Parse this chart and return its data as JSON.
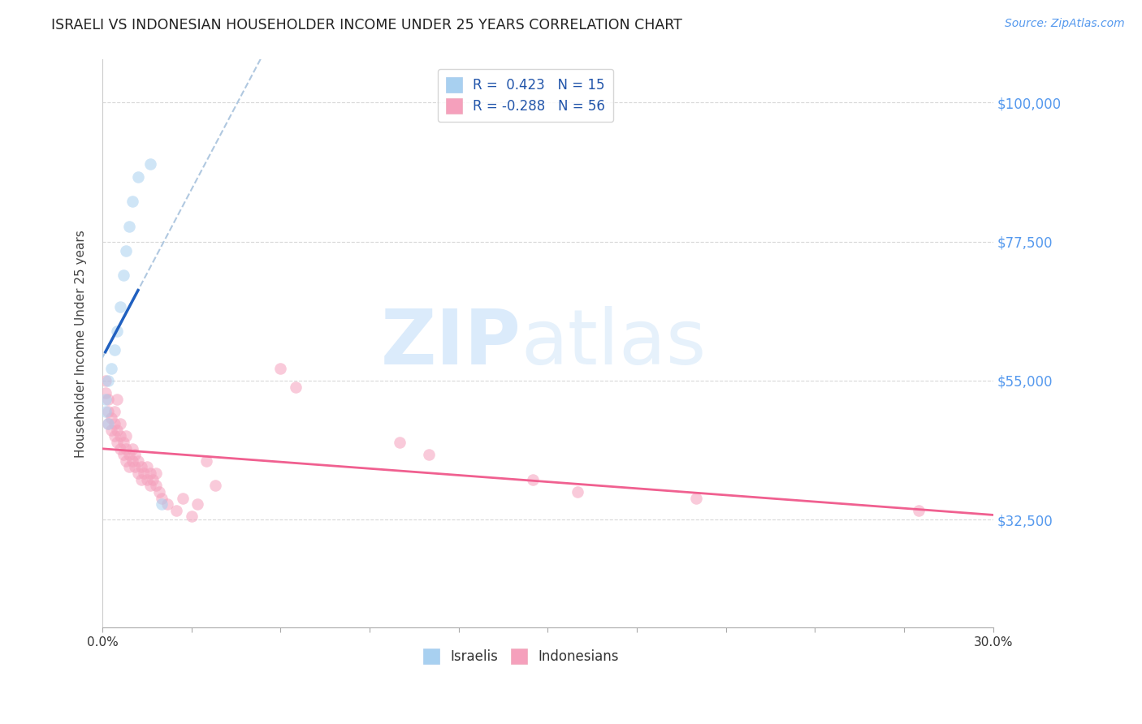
{
  "title": "ISRAELI VS INDONESIAN HOUSEHOLDER INCOME UNDER 25 YEARS CORRELATION CHART",
  "source": "Source: ZipAtlas.com",
  "ylabel": "Householder Income Under 25 years",
  "xlim": [
    0.0,
    0.3
  ],
  "ylim": [
    15000,
    107000
  ],
  "yticks": [
    32500,
    55000,
    77500,
    100000
  ],
  "ytick_labels": [
    "$32,500",
    "$55,000",
    "$77,500",
    "$100,000"
  ],
  "xticks": [
    0.0,
    0.03,
    0.06,
    0.09,
    0.12,
    0.15,
    0.18,
    0.21,
    0.24,
    0.27,
    0.3
  ],
  "xtick_labels_show": [
    "0.0%",
    "",
    "",
    "",
    "",
    "",
    "",
    "",
    "",
    "",
    "30.0%"
  ],
  "watermark_zip": "ZIP",
  "watermark_atlas": "atlas",
  "legend_R1": "R =  0.423   N = 15",
  "legend_R2": "R = -0.288   N = 56",
  "color_israeli": "#a8d0f0",
  "color_indonesian": "#f5a0bc",
  "color_line_israeli": "#2060c0",
  "color_line_indonesian": "#f06090",
  "color_dashed": "#b0c8e0",
  "bg_color": "#ffffff",
  "grid_color": "#d8d8d8",
  "title_color": "#222222",
  "axis_label_color": "#444444",
  "right_tick_color": "#5599ee",
  "source_color": "#5599ee",
  "israelis_x": [
    0.001,
    0.001,
    0.002,
    0.002,
    0.003,
    0.004,
    0.005,
    0.006,
    0.007,
    0.008,
    0.009,
    0.01,
    0.012,
    0.016,
    0.02
  ],
  "israelis_y": [
    50000,
    52000,
    48000,
    55000,
    57000,
    60000,
    63000,
    67000,
    72000,
    76000,
    80000,
    84000,
    88000,
    90000,
    35000
  ],
  "indonesians_x": [
    0.001,
    0.001,
    0.002,
    0.002,
    0.002,
    0.003,
    0.003,
    0.004,
    0.004,
    0.004,
    0.005,
    0.005,
    0.005,
    0.006,
    0.006,
    0.006,
    0.007,
    0.007,
    0.008,
    0.008,
    0.008,
    0.009,
    0.009,
    0.01,
    0.01,
    0.011,
    0.011,
    0.012,
    0.012,
    0.013,
    0.013,
    0.014,
    0.015,
    0.015,
    0.016,
    0.016,
    0.017,
    0.018,
    0.018,
    0.019,
    0.02,
    0.022,
    0.025,
    0.027,
    0.03,
    0.032,
    0.035,
    0.038,
    0.06,
    0.065,
    0.1,
    0.11,
    0.145,
    0.16,
    0.2,
    0.275
  ],
  "indonesians_y": [
    55000,
    53000,
    52000,
    50000,
    48000,
    49000,
    47000,
    48000,
    46000,
    50000,
    47000,
    45000,
    52000,
    46000,
    44000,
    48000,
    45000,
    43000,
    46000,
    44000,
    42000,
    43000,
    41000,
    44000,
    42000,
    41000,
    43000,
    40000,
    42000,
    41000,
    39000,
    40000,
    39000,
    41000,
    38000,
    40000,
    39000,
    38000,
    40000,
    37000,
    36000,
    35000,
    34000,
    36000,
    33000,
    35000,
    42000,
    38000,
    57000,
    54000,
    45000,
    43000,
    39000,
    37000,
    36000,
    34000
  ],
  "marker_size": 110,
  "marker_alpha": 0.55
}
